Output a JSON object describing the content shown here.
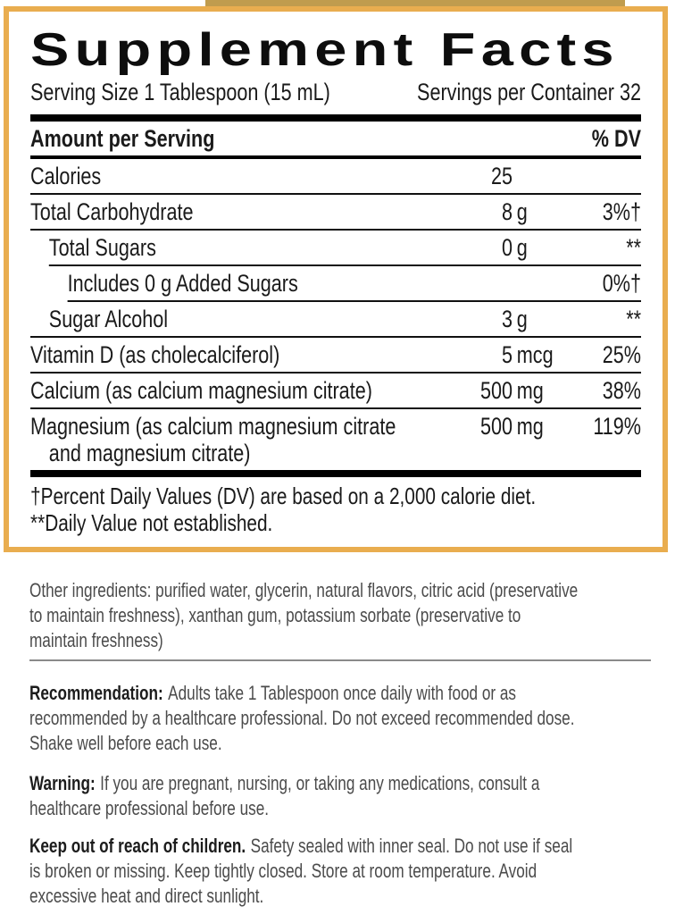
{
  "panel": {
    "title": "Supplement Facts",
    "serving_size": "Serving Size 1 Tablespoon (15 mL)",
    "servings_per_container": "Servings per Container 32",
    "header": {
      "left": "Amount per Serving",
      "right": "% DV"
    },
    "rows": [
      {
        "name": "Calories",
        "amount_num": "25",
        "amount_unit": "",
        "dv": ""
      },
      {
        "name": "Total Carbohydrate",
        "amount_num": "8",
        "amount_unit": "g",
        "dv": "3%†"
      },
      {
        "name": "Total Sugars",
        "amount_num": "0",
        "amount_unit": "g",
        "dv": "**"
      },
      {
        "name": "Includes 0 g Added Sugars",
        "amount_num": "",
        "amount_unit": "",
        "dv": "0%†"
      },
      {
        "name": "Sugar Alcohol",
        "amount_num": "3",
        "amount_unit": "g",
        "dv": "**"
      },
      {
        "name": "Vitamin D (as cholecalciferol)",
        "amount_num": "5",
        "amount_unit": "mcg",
        "dv": "25%"
      },
      {
        "name": "Calcium (as calcium magnesium citrate)",
        "amount_num": "500",
        "amount_unit": "mg",
        "dv": "38%"
      },
      {
        "name": "Magnesium (as calcium magnesium citrate\nand magnesium citrate)",
        "amount_num": "500",
        "amount_unit": "mg",
        "dv": "119%"
      }
    ],
    "footnotes": "†Percent Daily Values (DV) are based on a 2,000 calorie diet.\n**Daily Value not established."
  },
  "sections": {
    "other_ingredients": "Other ingredients: purified water, glycerin, natural flavors, citric acid (preservative\nto maintain freshness), xanthan gum, potassium sorbate (preservative to\nmaintain freshness)",
    "recommendation": {
      "label": "Recommendation:",
      "text": "Adults take 1 Tablespoon once daily with food or as\nrecommended by a healthcare professional. Do not exceed recommended dose.\nShake well before each use."
    },
    "warning": {
      "label": "Warning:",
      "text": "If you are pregnant, nursing, or taking any medications, consult a\nhealthcare professional before use."
    },
    "keep_out": {
      "label": "Keep out of reach of children.",
      "text": "Safety sealed with inner seal. Do not use if seal\nis broken or missing. Keep tightly closed. Store at room temperature. Avoid\nexcessive heat and direct sunlight."
    }
  },
  "colors": {
    "panel_border_gold": "#E9AD4F",
    "rule_black": "#000000",
    "section_divider_gray": "#8A8A8A",
    "body_text_gray": "#4B4B4B"
  }
}
